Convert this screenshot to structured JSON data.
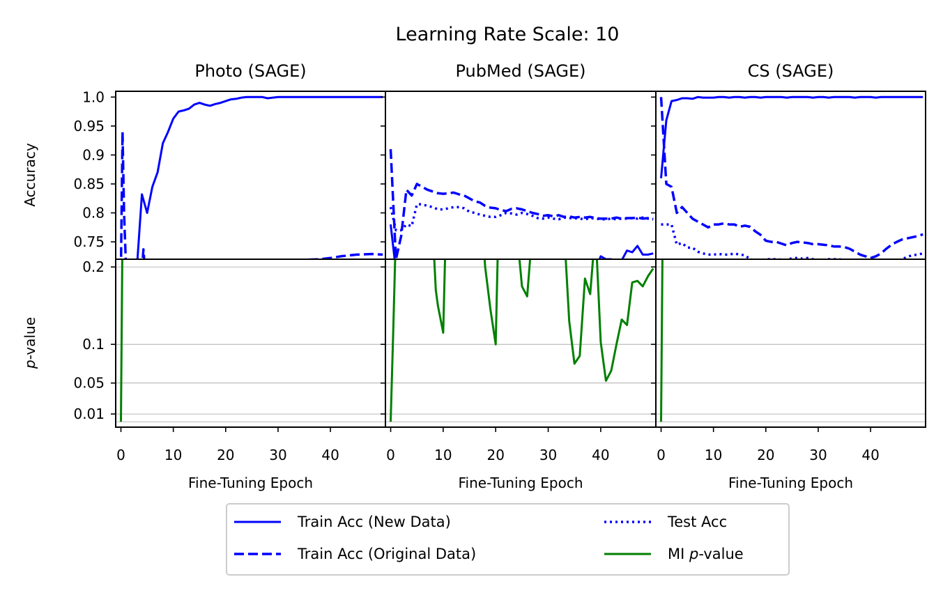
{
  "figure": {
    "suptitle": "Learning Rate Scale: 10"
  },
  "colors": {
    "blue": "#0000ff",
    "green": "#008000",
    "grid": "#a0a0a0"
  },
  "shared": {
    "acc_ylabel": "Accuracy",
    "p_ylabel_italic": "p",
    "p_ylabel_rest": "-value",
    "xlabel": "Fine-Tuning Epoch",
    "acc_ylim": [
      0.72,
      1.01
    ],
    "p_ylim": [
      -0.007,
      0.21
    ],
    "acc_yticks": [
      {
        "value": 1.0,
        "label": "1.0"
      },
      {
        "value": 0.95,
        "label": "0.95"
      },
      {
        "value": 0.9,
        "label": "0.9"
      },
      {
        "value": 0.85,
        "label": "0.85"
      },
      {
        "value": 0.8,
        "label": "0.8"
      },
      {
        "value": 0.75,
        "label": "0.75"
      }
    ],
    "p_yticks": [
      {
        "value": 0.2,
        "label": "0.2"
      },
      {
        "value": 0.1,
        "label": "0.1"
      },
      {
        "value": 0.05,
        "label": "0.05"
      },
      {
        "value": 0.01,
        "label": "0.01"
      }
    ],
    "p_gridlines": [
      0.2,
      0.1,
      0.05,
      0.01,
      0.0
    ],
    "xticks": [
      {
        "value": 0,
        "label": "0"
      },
      {
        "value": 10,
        "label": "10"
      },
      {
        "value": 20,
        "label": "20"
      },
      {
        "value": 30,
        "label": "30"
      },
      {
        "value": 40,
        "label": "40"
      }
    ],
    "xlim": [
      -1,
      50.5
    ]
  },
  "legend": {
    "items": [
      {
        "label": "Train Acc (New Data)",
        "style": "solid",
        "color": "#0000ff"
      },
      {
        "label": "Train Acc (Original Data)",
        "style": "dashed",
        "color": "#0000ff"
      },
      {
        "label": "Test Acc",
        "style": "dotted",
        "color": "#0000ff"
      },
      {
        "label_prefix": "MI ",
        "label_italic": "p",
        "label_suffix": "-value",
        "style": "solid",
        "color": "#008000"
      }
    ]
  },
  "chart_data": [
    {
      "type": "line",
      "title": "Photo (SAGE)",
      "xlabel": "Fine-Tuning Epoch",
      "ylabel": "Accuracy / p-value",
      "series": [
        {
          "name": "Train Acc (New Data)",
          "x": [
            3,
            4,
            5,
            6,
            7,
            8,
            9,
            10,
            11,
            12,
            13,
            14,
            15,
            16,
            17,
            18,
            19,
            20,
            21,
            22,
            23,
            24,
            25,
            26,
            27,
            28,
            29,
            30,
            31,
            32,
            33,
            34,
            35,
            36,
            37,
            38,
            39,
            40,
            41,
            42,
            43,
            44,
            45,
            46,
            47,
            48,
            49,
            50
          ],
          "values": [
            0.7,
            0.832,
            0.8,
            0.845,
            0.87,
            0.92,
            0.94,
            0.963,
            0.975,
            0.977,
            0.98,
            0.987,
            0.99,
            0.987,
            0.985,
            0.988,
            0.99,
            0.993,
            0.996,
            0.997,
            0.999,
            1.0,
            1.0,
            1.0,
            1.0,
            0.998,
            0.999,
            1.0,
            1.0,
            1.0,
            1.0,
            1.0,
            1.0,
            1.0,
            1.0,
            1.0,
            1.0,
            1.0,
            1.0,
            1.0,
            1.0,
            1.0,
            1.0,
            1.0,
            1.0,
            1.0,
            1.0,
            1.0
          ]
        },
        {
          "name": "Train Acc (Original Data)",
          "x": [
            0,
            0.3,
            0.6,
            1,
            2,
            3,
            4,
            4.3,
            4.6,
            5,
            10,
            20,
            23,
            25,
            26,
            28,
            30,
            35,
            38,
            40,
            42,
            45,
            48,
            50
          ],
          "values": [
            0.7,
            0.94,
            0.8,
            0.7,
            0.7,
            0.7,
            0.7,
            0.737,
            0.7,
            0.7,
            0.7,
            0.7,
            0.7,
            0.7,
            0.721,
            0.7,
            0.7,
            0.719,
            0.72,
            0.722,
            0.725,
            0.728,
            0.729,
            0.728
          ]
        },
        {
          "name": "Test Acc",
          "x": [],
          "values": []
        },
        {
          "name": "MI p-value",
          "x": [
            0,
            0.3,
            1
          ],
          "values": [
            0.0,
            0.25,
            0.25
          ]
        }
      ]
    },
    {
      "type": "line",
      "title": "PubMed (SAGE)",
      "xlabel": "Fine-Tuning Epoch",
      "ylabel": "Accuracy / p-value",
      "series": [
        {
          "name": "Train Acc (New Data)",
          "x": [
            0,
            1,
            38,
            39,
            40,
            41,
            42,
            43,
            44,
            45,
            46,
            47,
            48,
            49,
            50
          ],
          "values": [
            0.78,
            0.7,
            0.7,
            0.7,
            0.725,
            0.72,
            0.72,
            0.713,
            0.718,
            0.735,
            0.732,
            0.743,
            0.728,
            0.728,
            0.73
          ]
        },
        {
          "name": "Train Acc (Original Data)",
          "x": [
            0,
            1,
            2,
            3,
            4,
            5,
            6,
            7,
            8,
            9,
            10,
            11,
            12,
            13,
            14,
            15,
            16,
            17,
            18,
            19,
            20,
            21,
            22,
            23,
            24,
            25,
            26,
            27,
            28,
            29,
            30,
            31,
            32,
            33,
            34,
            35,
            36,
            37,
            38,
            39,
            40,
            41,
            42,
            43,
            44,
            45,
            46,
            47,
            48,
            49,
            50
          ],
          "values": [
            0.91,
            0.72,
            0.76,
            0.84,
            0.83,
            0.85,
            0.845,
            0.84,
            0.837,
            0.834,
            0.833,
            0.834,
            0.835,
            0.832,
            0.83,
            0.825,
            0.82,
            0.818,
            0.812,
            0.809,
            0.808,
            0.805,
            0.803,
            0.807,
            0.808,
            0.806,
            0.803,
            0.8,
            0.798,
            0.795,
            0.796,
            0.794,
            0.796,
            0.793,
            0.794,
            0.792,
            0.793,
            0.792,
            0.793,
            0.791,
            0.79,
            0.79,
            0.79,
            0.792,
            0.79,
            0.791,
            0.791,
            0.792,
            0.79,
            0.791,
            0.791
          ]
        },
        {
          "name": "Test Acc",
          "x": [
            0,
            1,
            2,
            3,
            4,
            5,
            6,
            7,
            8,
            9,
            10,
            11,
            12,
            13,
            14,
            15,
            16,
            17,
            18,
            19,
            20,
            21,
            22,
            23,
            24,
            25,
            26,
            27,
            28,
            29,
            30,
            31,
            32,
            33,
            34,
            35,
            36,
            37,
            38,
            39,
            40,
            41,
            42,
            43,
            44,
            45,
            46,
            47,
            48,
            49,
            50
          ],
          "values": [
            0.81,
            0.77,
            0.77,
            0.78,
            0.777,
            0.815,
            0.815,
            0.812,
            0.81,
            0.806,
            0.806,
            0.808,
            0.81,
            0.81,
            0.808,
            0.802,
            0.8,
            0.797,
            0.795,
            0.793,
            0.793,
            0.796,
            0.8,
            0.799,
            0.797,
            0.8,
            0.798,
            0.795,
            0.791,
            0.79,
            0.792,
            0.79,
            0.789,
            0.792,
            0.791,
            0.791,
            0.79,
            0.789,
            0.791,
            0.79,
            0.789,
            0.789,
            0.79,
            0.789,
            0.79,
            0.79,
            0.791,
            0.79,
            0.792,
            0.79,
            0.789
          ]
        },
        {
          "name": "MI p-value",
          "x": [
            0,
            0.5,
            1,
            1.2,
            8,
            8.6,
            9,
            10,
            10.5,
            17.5,
            18,
            19,
            20,
            20.5,
            24,
            25,
            26,
            27,
            33,
            34,
            35,
            36,
            37,
            38,
            39,
            40,
            41,
            42,
            43,
            44,
            45,
            46,
            47,
            48,
            49,
            50
          ],
          "values": [
            0.0,
            0.12,
            0.25,
            0.25,
            0.25,
            0.17,
            0.15,
            0.115,
            0.25,
            0.25,
            0.2,
            0.145,
            0.1,
            0.25,
            0.25,
            0.175,
            0.162,
            0.25,
            0.25,
            0.13,
            0.075,
            0.085,
            0.185,
            0.165,
            0.25,
            0.103,
            0.053,
            0.066,
            0.1,
            0.132,
            0.125,
            0.18,
            0.182,
            0.175,
            0.188,
            0.198
          ]
        }
      ]
    },
    {
      "type": "line",
      "title": "CS (SAGE)",
      "xlabel": "Fine-Tuning Epoch",
      "ylabel": "Accuracy / p-value",
      "series": [
        {
          "name": "Train Acc (New Data)",
          "x": [
            0,
            1,
            2,
            3,
            4,
            5,
            6,
            7,
            8,
            9,
            10,
            11,
            12,
            13,
            14,
            15,
            16,
            17,
            18,
            19,
            20,
            21,
            22,
            23,
            24,
            25,
            26,
            27,
            28,
            29,
            30,
            31,
            32,
            33,
            34,
            35,
            36,
            37,
            38,
            39,
            40,
            41,
            42,
            43,
            44,
            45,
            46,
            47,
            48,
            49,
            50
          ],
          "values": [
            0.86,
            0.96,
            0.993,
            0.995,
            0.998,
            0.998,
            0.997,
            1.0,
            0.999,
            0.999,
            0.999,
            1.0,
            1.0,
            0.999,
            1.0,
            1.0,
            0.999,
            1.0,
            1.0,
            0.999,
            1.0,
            1.0,
            1.0,
            1.0,
            0.999,
            1.0,
            1.0,
            1.0,
            1.0,
            0.999,
            1.0,
            1.0,
            0.999,
            1.0,
            1.0,
            1.0,
            1.0,
            0.999,
            1.0,
            1.0,
            1.0,
            0.999,
            1.0,
            1.0,
            1.0,
            1.0,
            1.0,
            1.0,
            1.0,
            1.0,
            1.0
          ]
        },
        {
          "name": "Train Acc (Original Data)",
          "x": [
            0,
            1,
            2,
            3,
            4,
            5,
            6,
            7,
            8,
            9,
            10,
            11,
            12,
            13,
            14,
            15,
            16,
            17,
            18,
            19,
            20,
            21,
            22,
            23,
            24,
            25,
            26,
            27,
            28,
            29,
            30,
            31,
            32,
            33,
            34,
            35,
            36,
            37,
            38,
            39,
            40,
            41,
            42,
            43,
            44,
            45,
            46,
            47,
            48,
            49,
            50
          ],
          "values": [
            1.0,
            0.85,
            0.845,
            0.8,
            0.81,
            0.8,
            0.79,
            0.785,
            0.78,
            0.775,
            0.78,
            0.78,
            0.782,
            0.78,
            0.78,
            0.776,
            0.778,
            0.776,
            0.768,
            0.762,
            0.752,
            0.75,
            0.75,
            0.747,
            0.744,
            0.748,
            0.75,
            0.749,
            0.748,
            0.746,
            0.746,
            0.745,
            0.744,
            0.742,
            0.742,
            0.741,
            0.738,
            0.733,
            0.728,
            0.725,
            0.722,
            0.725,
            0.73,
            0.738,
            0.745,
            0.75,
            0.754,
            0.756,
            0.758,
            0.76,
            0.763
          ]
        },
        {
          "name": "Test Acc",
          "x": [
            0,
            1,
            2,
            3,
            4,
            5,
            6,
            7,
            8,
            9,
            10,
            11,
            12,
            13,
            14,
            15,
            16,
            17,
            18,
            19,
            20,
            21,
            22,
            23,
            24,
            25,
            26,
            27,
            28,
            29,
            30,
            31,
            32,
            33,
            34,
            35,
            36,
            37,
            38,
            39,
            40,
            41,
            42,
            43,
            44,
            45,
            46,
            47,
            48,
            49,
            50
          ],
          "values": [
            0.78,
            0.78,
            0.78,
            0.745,
            0.748,
            0.74,
            0.74,
            0.733,
            0.73,
            0.728,
            0.728,
            0.729,
            0.728,
            0.728,
            0.73,
            0.728,
            0.727,
            0.72,
            0.718,
            0.718,
            0.72,
            0.72,
            0.72,
            0.719,
            0.718,
            0.722,
            0.722,
            0.721,
            0.722,
            0.72,
            0.719,
            0.718,
            0.72,
            0.72,
            0.72,
            0.718,
            0.715,
            0.712,
            0.711,
            0.71,
            0.708,
            0.707,
            0.708,
            0.71,
            0.712,
            0.716,
            0.72,
            0.724,
            0.727,
            0.728,
            0.73
          ]
        },
        {
          "name": "MI p-value",
          "x": [
            0,
            0.3,
            1
          ],
          "values": [
            0.0,
            0.25,
            0.25
          ]
        }
      ]
    }
  ]
}
